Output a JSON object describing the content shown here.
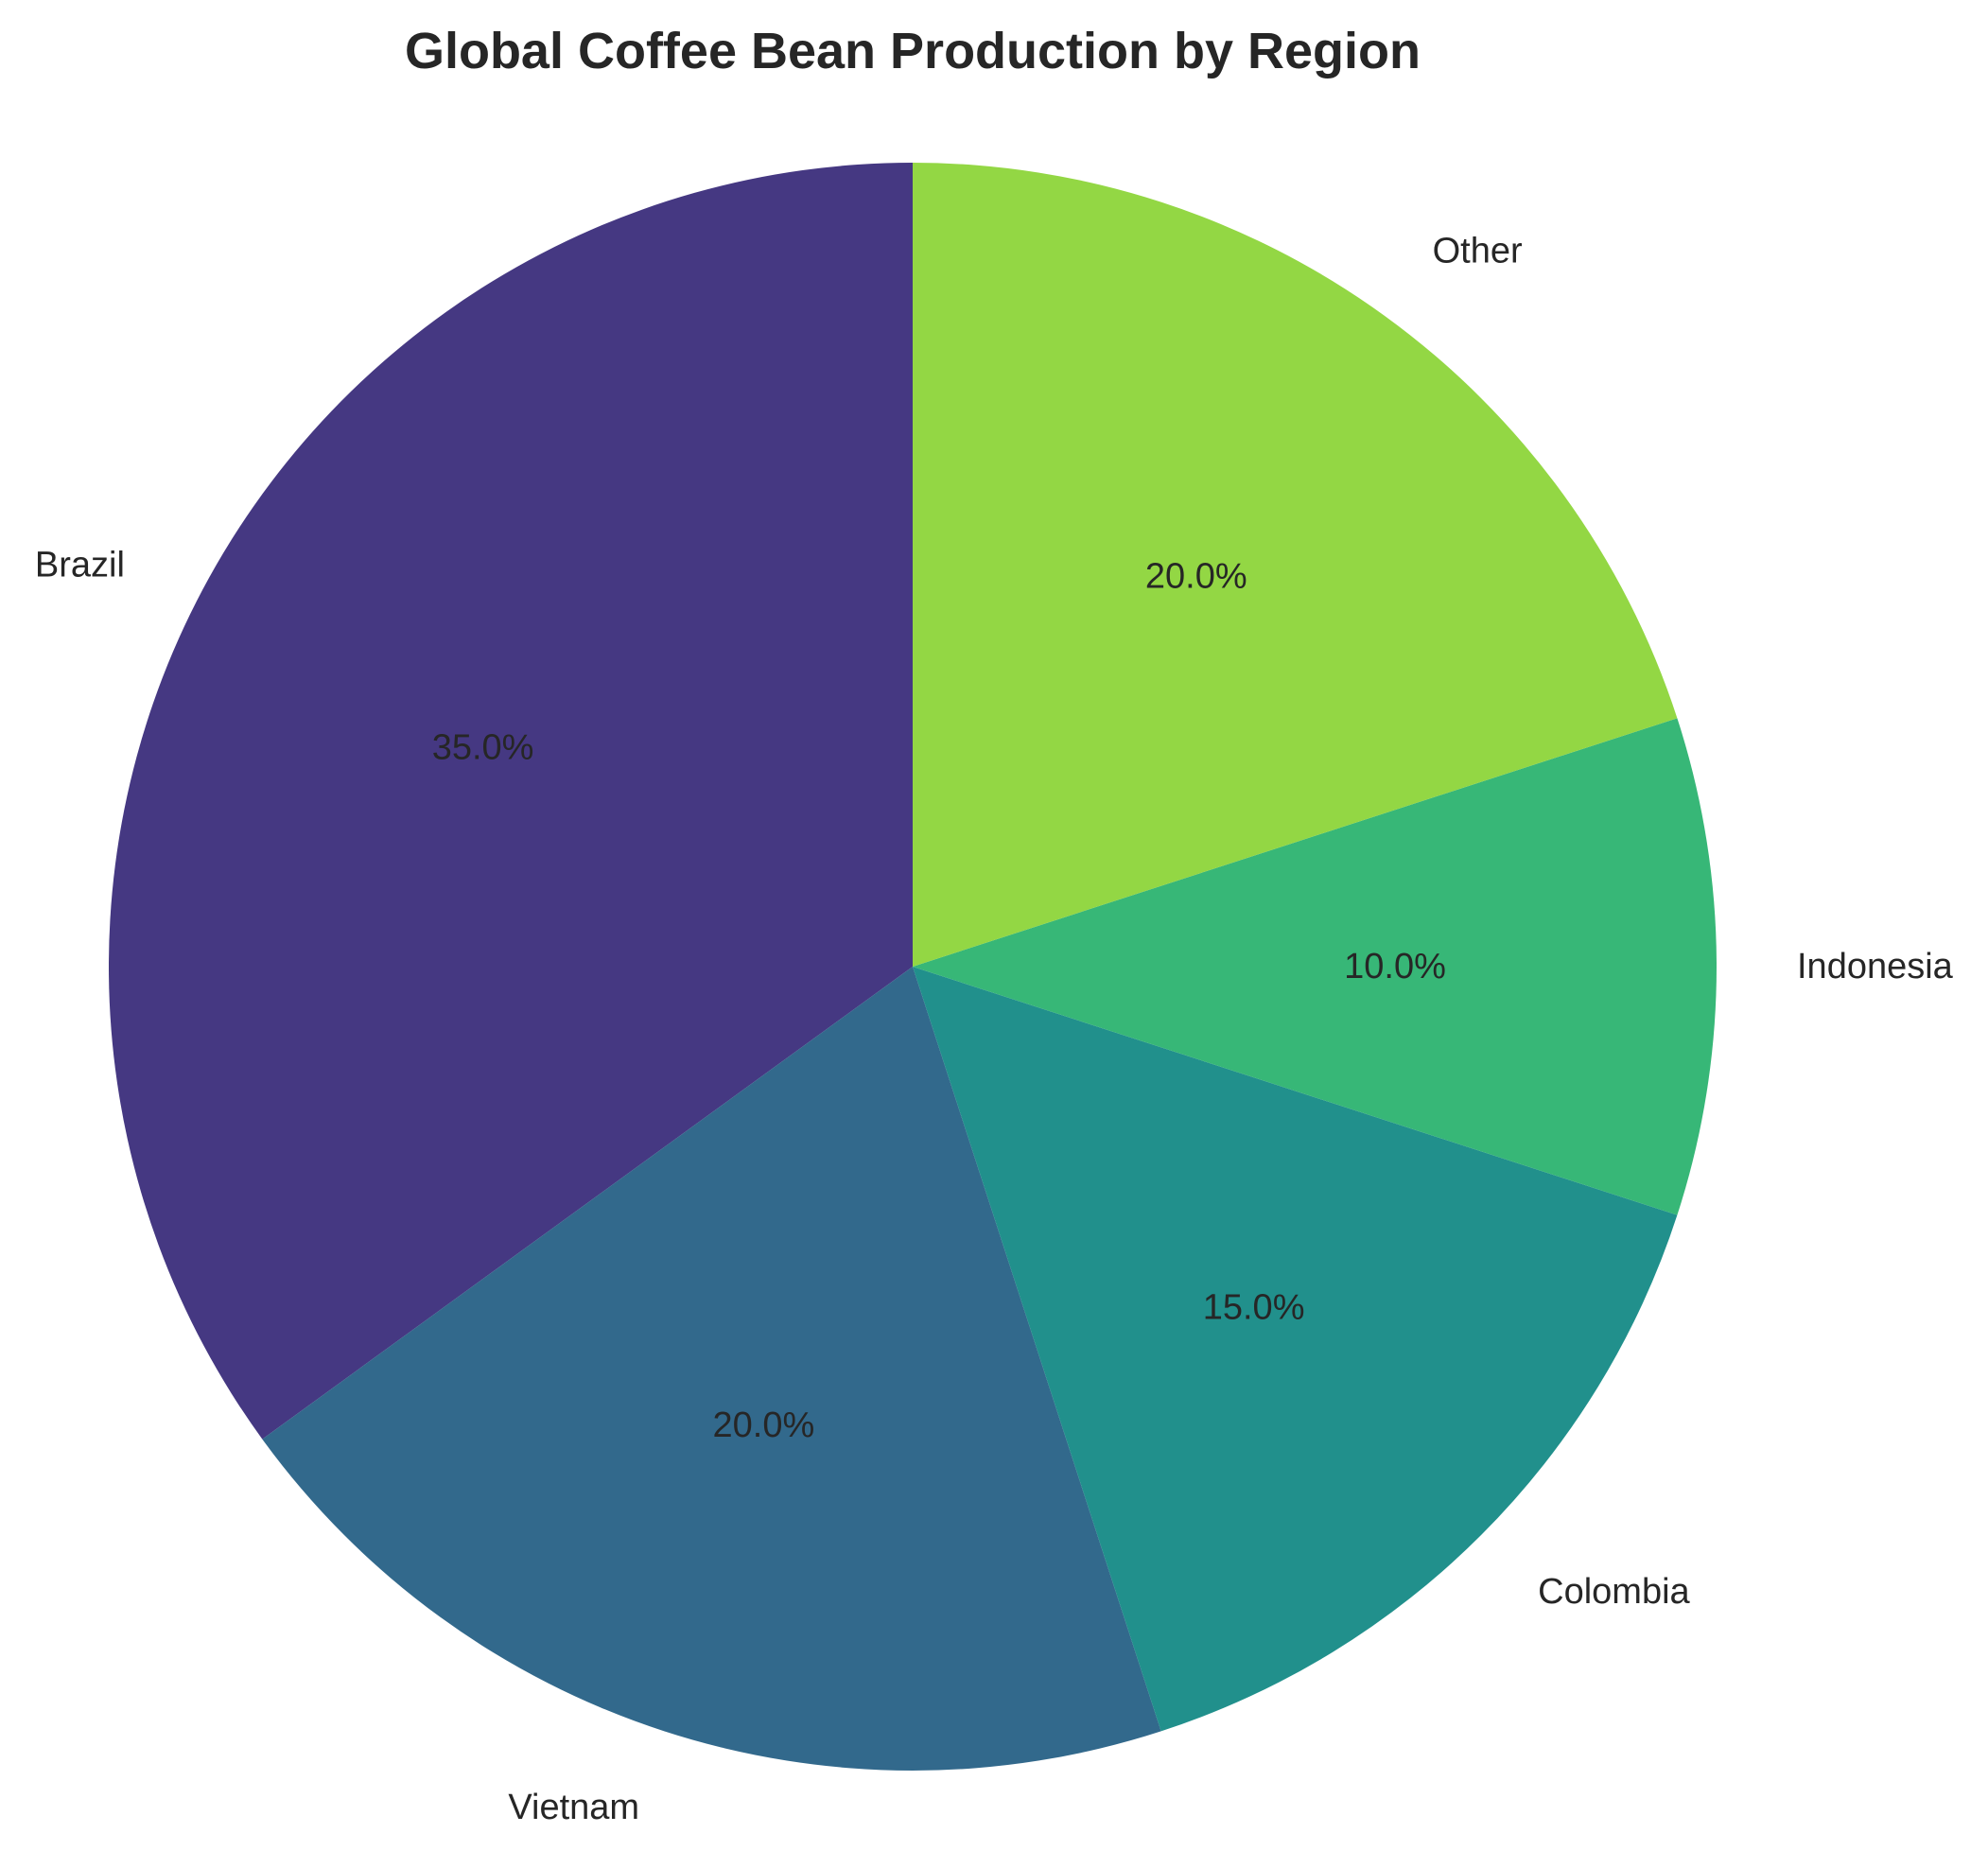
{
  "chart_data": {
    "type": "pie",
    "title": "Global Coffee Bean Production by Region",
    "categories": [
      "Brazil",
      "Vietnam",
      "Colombia",
      "Indonesia",
      "Other"
    ],
    "values": [
      35.0,
      20.0,
      15.0,
      10.0,
      20.0
    ],
    "value_labels": [
      "35.0%",
      "20.0%",
      "15.0%",
      "10.0%",
      "20.0%"
    ],
    "colors": [
      "#453882",
      "#32698c",
      "#21908c",
      "#37b777",
      "#93d744"
    ],
    "start_angle_deg": 90,
    "direction": "counterclockwise"
  }
}
